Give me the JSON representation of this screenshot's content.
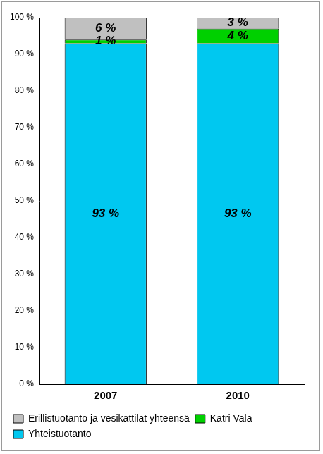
{
  "chart_data": {
    "type": "bar",
    "stacked": true,
    "categories": [
      "2007",
      "2010"
    ],
    "series": [
      {
        "name": "Yhteistuotanto",
        "color": "#00c8f0",
        "values": [
          93,
          93
        ],
        "value_labels": [
          "93 %",
          "93 %"
        ]
      },
      {
        "name": "Katri Vala",
        "color": "#00d000",
        "values": [
          1,
          4
        ],
        "value_labels": [
          "1 %",
          "4 %"
        ]
      },
      {
        "name": "Erillistuotanto ja vesikattilat yhteensä",
        "color": "#c0c0c0",
        "values": [
          6,
          3
        ],
        "value_labels": [
          "6 %",
          "3 %"
        ]
      }
    ],
    "ylim": [
      0,
      100
    ],
    "yticks": [
      {
        "value": 0,
        "label": "0 %"
      },
      {
        "value": 10,
        "label": "10 %"
      },
      {
        "value": 20,
        "label": "20 %"
      },
      {
        "value": 30,
        "label": "30 %"
      },
      {
        "value": 40,
        "label": "40 %"
      },
      {
        "value": 50,
        "label": "50 %"
      },
      {
        "value": 60,
        "label": "60 %"
      },
      {
        "value": 70,
        "label": "70 %"
      },
      {
        "value": 80,
        "label": "80 %"
      },
      {
        "value": 90,
        "label": "90 %"
      },
      {
        "value": 100,
        "label": "100 %"
      }
    ],
    "grid": false,
    "legend": "bottom",
    "data_labels": true
  }
}
